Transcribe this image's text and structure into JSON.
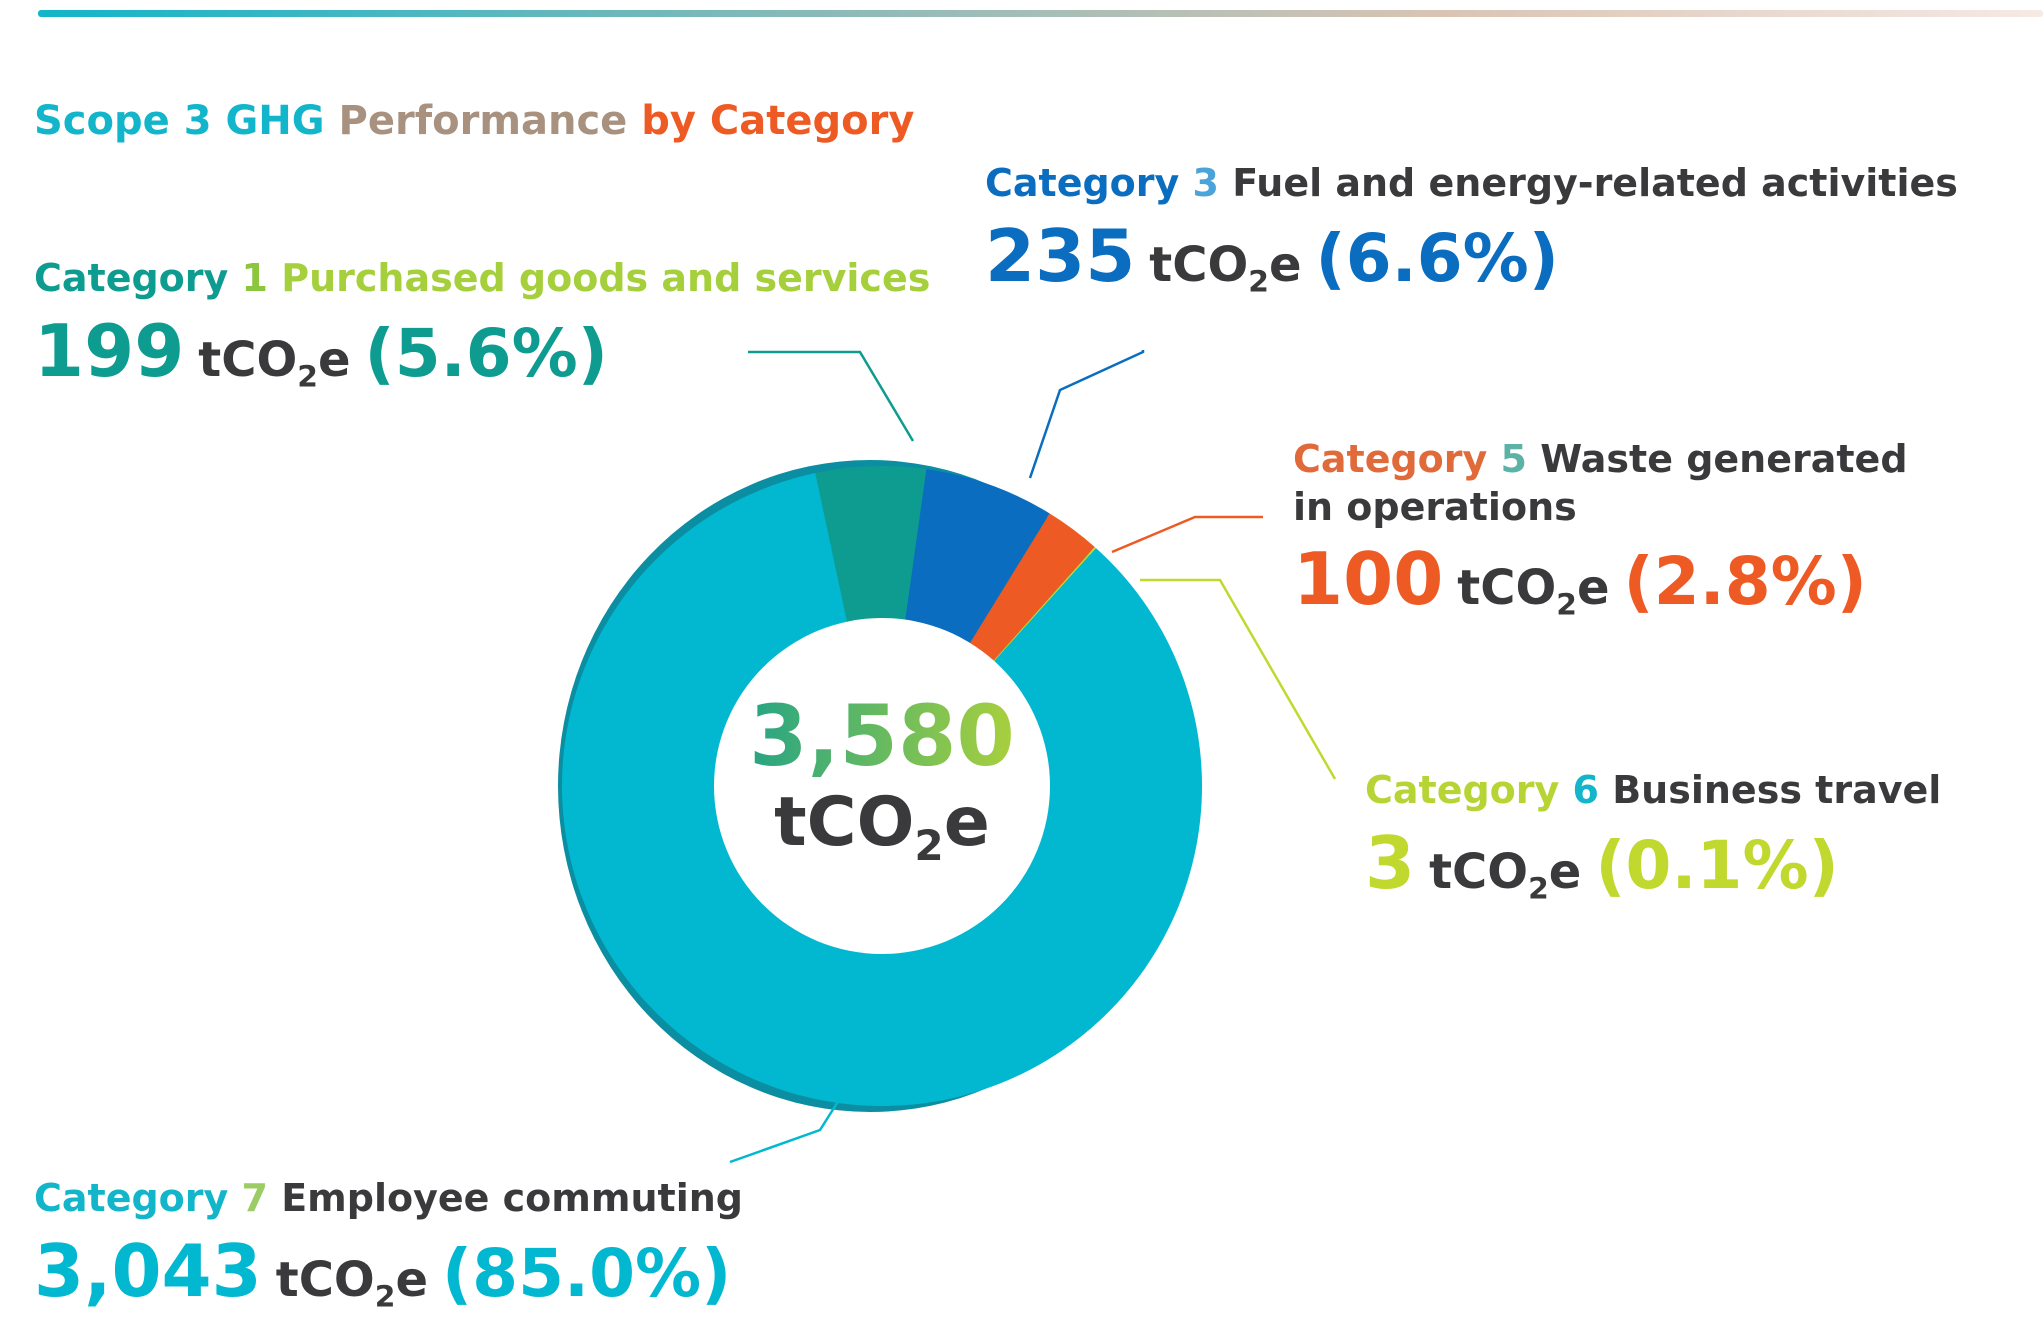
{
  "title": {
    "part1": "Scope 3 GHG",
    "part2": "Performance",
    "part3": "by Category"
  },
  "unit": {
    "pre": "tCO",
    "sub": "2",
    "post": "e"
  },
  "center": {
    "total": "3,580"
  },
  "colors": {
    "cat1": "#0e9c91",
    "cat3": "#0a6dbf",
    "cat5": "#ee5a24",
    "cat6": "#c1d82f",
    "cat7": "#02b8d0",
    "text_dark": "#3a3a3c"
  },
  "callouts": [
    {
      "id": "cat1",
      "category": "Category",
      "number": "1",
      "name": "Purchased goods and services",
      "name2": "",
      "value": "199",
      "percent": "(5.6%)"
    },
    {
      "id": "cat3",
      "category": "Category",
      "number": "3",
      "name": "Fuel and energy-related activities",
      "name2": "",
      "value": "235",
      "percent": "(6.6%)"
    },
    {
      "id": "cat5",
      "category": "Category",
      "number": "5",
      "name": "Waste generated",
      "name2": "in operations",
      "value": "100",
      "percent": "(2.8%)"
    },
    {
      "id": "cat6",
      "category": "Category",
      "number": "6",
      "name": "Business travel",
      "name2": "",
      "value": "3",
      "percent": "(0.1%)"
    },
    {
      "id": "cat7",
      "category": "Category",
      "number": "7",
      "name": "Employee commuting",
      "name2": "",
      "value": "3,043",
      "percent": "(85.0%)"
    }
  ],
  "chart_data": {
    "type": "pie",
    "donut": true,
    "title": "Scope 3 GHG Performance by Category",
    "unit": "tCO2e",
    "total": 3580,
    "categories": [
      "Category 1 Purchased goods and services",
      "Category 3 Fuel and energy-related activities",
      "Category 5 Waste generated in operations",
      "Category 6 Business travel",
      "Category 7 Employee commuting"
    ],
    "values": [
      199,
      235,
      100,
      3,
      3043
    ],
    "percentages": [
      5.6,
      6.6,
      2.8,
      0.1,
      85.0
    ],
    "colors": [
      "#0e9c91",
      "#0a6dbf",
      "#ee5a24",
      "#c1d82f",
      "#02b8d0"
    ]
  }
}
